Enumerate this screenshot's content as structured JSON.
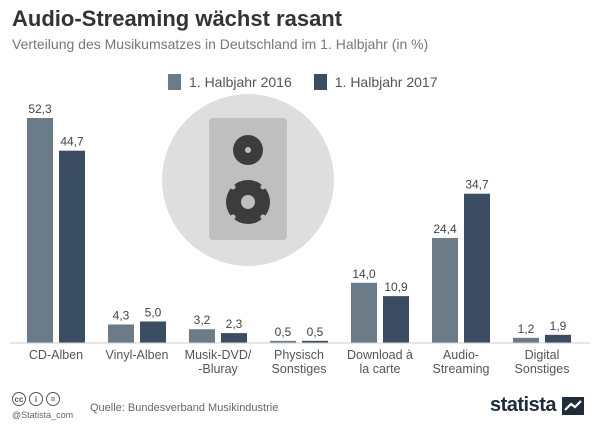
{
  "title": "Audio-Streaming wächst rasant",
  "subtitle": "Verteilung des Musikumsatzes in Deutschland im 1. Halbjahr (in %)",
  "colors": {
    "series1": "#6b7b88",
    "series2": "#3a4d62",
    "axis": "#cccccc",
    "illustration_bg": "#dedede",
    "speaker_body": "#bfbfbf",
    "speaker_dark": "#3c3c3c"
  },
  "chart_data": {
    "type": "bar",
    "title": "Audio-Streaming wächst rasant",
    "subtitle": "Verteilung des Musikumsatzes in Deutschland im 1. Halbjahr (in %)",
    "xlabel": "",
    "ylabel": "",
    "ylim": [
      0,
      55
    ],
    "grid": false,
    "legend_position": "top",
    "categories": [
      "CD-Alben",
      "Vinyl-Alben",
      "Musik-DVD/\n-Bluray",
      "Physisch\nSonstiges",
      "Download à\nla carte",
      "Audio-\nStreaming",
      "Digital\nSonstiges"
    ],
    "series": [
      {
        "name": "1. Halbjahr 2016",
        "values": [
          52.3,
          4.3,
          3.2,
          0.5,
          14.0,
          24.4,
          1.2
        ],
        "labels": [
          "52,3",
          "4,3",
          "3,2",
          "0,5",
          "14,0",
          "24,4",
          "1,2"
        ]
      },
      {
        "name": "1. Halbjahr 2017",
        "values": [
          44.7,
          5.0,
          2.3,
          0.5,
          10.9,
          34.7,
          1.9
        ],
        "labels": [
          "44,7",
          "5,0",
          "2,3",
          "0,5",
          "10,9",
          "34,7",
          "1,9"
        ]
      }
    ]
  },
  "illustration": {
    "icon": "speaker-icon"
  },
  "footer": {
    "handle": "@Statista_com",
    "source": "Quelle: Bundesverband Musikindustrie",
    "brand": "statista",
    "cc_icons": [
      "cc",
      "i",
      "="
    ]
  }
}
